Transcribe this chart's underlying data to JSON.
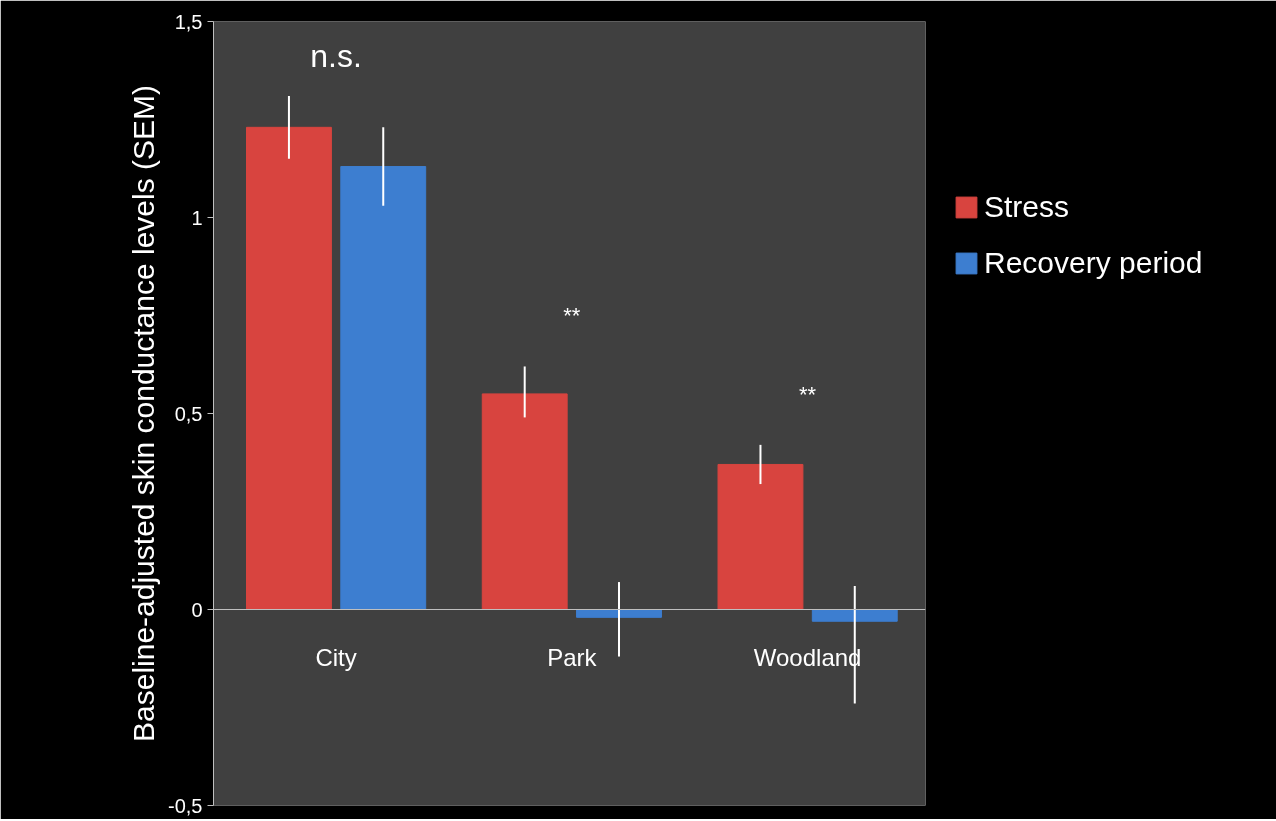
{
  "chart_data": {
    "type": "bar",
    "categories": [
      "City",
      "Park",
      "Woodland"
    ],
    "series": [
      {
        "name": "Stress",
        "color": "#d8443f",
        "values": [
          1.23,
          0.55,
          0.37
        ],
        "errors": [
          [
            1.15,
            1.31
          ],
          [
            0.49,
            0.62
          ],
          [
            0.32,
            0.42
          ]
        ]
      },
      {
        "name": "Recovery period",
        "color": "#3d7ed0",
        "values": [
          1.13,
          -0.02,
          -0.03
        ],
        "errors": [
          [
            1.03,
            1.23
          ],
          [
            -0.12,
            0.07
          ],
          [
            -0.24,
            0.06
          ]
        ]
      }
    ],
    "ylim": [
      -0.5,
      1.5
    ],
    "yticks": [
      {
        "value": -0.5,
        "label": "-0,5"
      },
      0,
      {
        "value": 0.5,
        "label": "0,5"
      },
      1,
      {
        "value": 1.5,
        "label": "1,5"
      }
    ],
    "ylabel": "Baseline-adjusted skin conductance levels (SEM)",
    "annotations": [
      "n.s.",
      "**",
      "**"
    ],
    "grid": false,
    "legend": "right"
  }
}
